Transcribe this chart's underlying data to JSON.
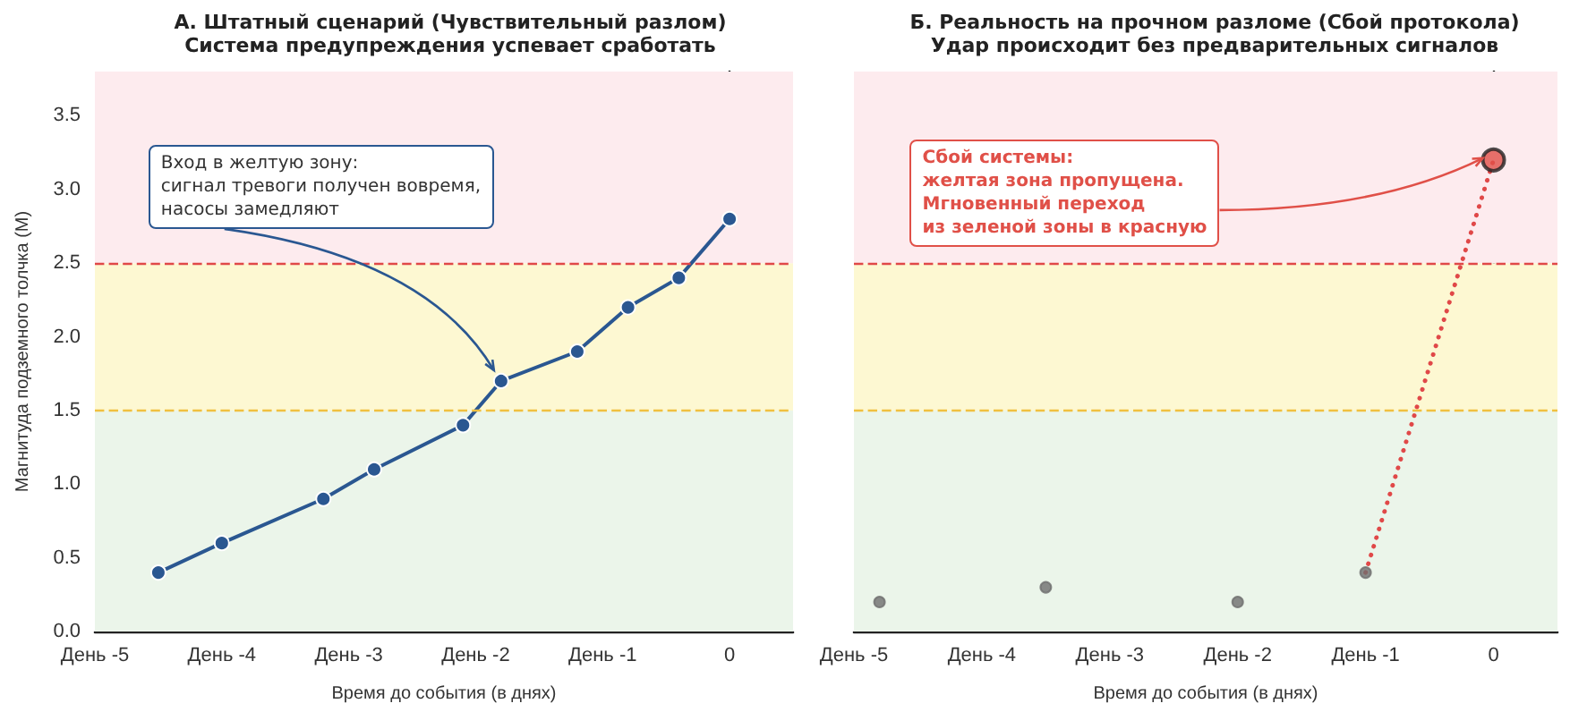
{
  "chart_data": [
    {
      "type": "line",
      "title": "А. Штатный сценарий (Чувствительный разлом)",
      "subtitle": "Система предупреждения успевает сработать",
      "xlabel": "Время до события (в днях)",
      "ylabel": "Магнитуда подземного толчка (M)",
      "xlim": [
        -5,
        0.5
      ],
      "xticks": [
        {
          "value": -5,
          "label": "День -5"
        },
        {
          "value": -4,
          "label": "День -4"
        },
        {
          "value": -3,
          "label": "День -3"
        },
        {
          "value": -2,
          "label": "День -2"
        },
        {
          "value": -1,
          "label": "День -1"
        },
        0
      ],
      "ylim": [
        0,
        3.8
      ],
      "yticks": [
        {
          "value": 0,
          "label": "0.0"
        },
        0.5,
        {
          "value": 1,
          "label": "1.0"
        },
        1.5,
        {
          "value": 2,
          "label": "2.0"
        },
        2.5,
        {
          "value": 3,
          "label": "3.0"
        },
        3.5
      ],
      "grid": false,
      "marker": "circle",
      "line_style": "solid",
      "series": [
        {
          "type": "line",
          "color": "#2a5791",
          "x": [
            -4.5,
            -4.0,
            -3.2,
            -2.8,
            -2.1,
            -1.8,
            -1.2,
            -0.8,
            -0.4,
            0
          ],
          "values": [
            0.4,
            0.6,
            0.9,
            1.1,
            1.4,
            1.7,
            1.9,
            2.2,
            2.4,
            2.8
          ]
        }
      ],
      "bands": [
        {
          "axis": "y",
          "from": 0,
          "to": 1.5,
          "color": "#ebf5ea"
        },
        {
          "axis": "y",
          "from": 1.5,
          "to": 2.5,
          "color": "#fdf8d2"
        },
        {
          "axis": "y",
          "from": 2.5,
          "to": 3.8,
          "color": "#fdebee"
        }
      ],
      "ref_lines": [
        {
          "axis": "y",
          "value": 1.5,
          "color": "#f0c040",
          "line_style": "dashed"
        },
        {
          "axis": "y",
          "value": 2.5,
          "color": "#e04848",
          "line_style": "dashed"
        }
      ],
      "annotations": [
        {
          "text": "Вход в желтую зону:\nсигнал тревоги получен вовремя,\nнасосы замедляют",
          "x": -1.8,
          "y": 1.7
        }
      ]
    },
    {
      "type": "line",
      "title": "Б. Реальность на прочном разломе (Сбой протокола)",
      "subtitle": "Удар происходит без предварительных сигналов",
      "xlabel": "Время до события (в днях)",
      "xlim": [
        -5,
        0.5
      ],
      "xticks": [
        {
          "value": -5,
          "label": "День -5"
        },
        {
          "value": -4,
          "label": "День -4"
        },
        {
          "value": -3,
          "label": "День -3"
        },
        {
          "value": -2,
          "label": "День -2"
        },
        {
          "value": -1,
          "label": "День -1"
        },
        0
      ],
      "ylim": [
        0,
        3.8
      ],
      "yticks": [
        0,
        0.5,
        1,
        1.5,
        2,
        2.5,
        3,
        3.5
      ],
      "tick_labels": "x",
      "grid": false,
      "series": [
        {
          "type": "scatter",
          "color": "#6e6e6e",
          "marker": "circle",
          "x": [
            -4.8,
            -3.5,
            -2.0,
            -1.0
          ],
          "values": [
            0.2,
            0.3,
            0.2,
            0.4
          ]
        },
        {
          "type": "line",
          "color": "#e04848",
          "marker": "none",
          "line_style": "dotted",
          "x": [
            -1.0,
            0
          ],
          "values": [
            0.4,
            3.2
          ]
        },
        {
          "type": "scatter",
          "color": "#e05048",
          "marker": "circle",
          "x": [
            0
          ],
          "values": [
            3.2
          ]
        }
      ],
      "bands": [
        {
          "axis": "y",
          "from": 0,
          "to": 1.5,
          "color": "#ebf5ea"
        },
        {
          "axis": "y",
          "from": 1.5,
          "to": 2.5,
          "color": "#fdf8d2"
        },
        {
          "axis": "y",
          "from": 2.5,
          "to": 3.8,
          "color": "#fdebee"
        }
      ],
      "ref_lines": [
        {
          "axis": "y",
          "value": 1.5,
          "color": "#f0c040",
          "line_style": "dashed"
        },
        {
          "axis": "y",
          "value": 2.5,
          "color": "#e04848",
          "line_style": "dashed"
        }
      ],
      "annotations": [
        {
          "text": "Сбой системы:\nжелтая зона пропущена.\nМгновенный переход\nиз зеленой зоны в красную",
          "x": 0,
          "y": 3.2
        }
      ]
    }
  ]
}
